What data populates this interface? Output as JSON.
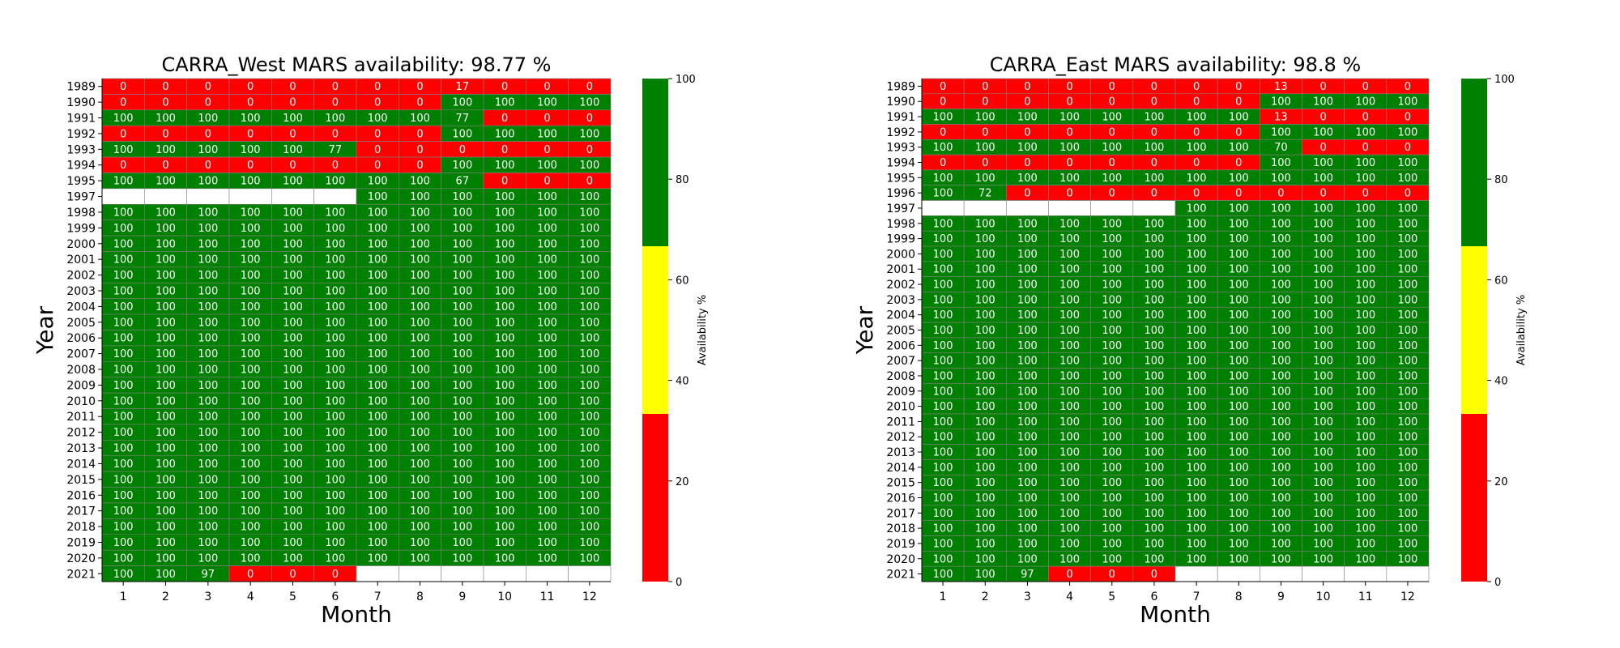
{
  "chart_data": [
    {
      "type": "heatmap",
      "title": "CARRA_West MARS availability: 98.77 %",
      "xlabel": "Month",
      "ylabel": "Year",
      "colorbar_label": "Availability %",
      "colorbar_ticks": [
        "0",
        "20",
        "40",
        "60",
        "80",
        "100"
      ],
      "x": [
        "1",
        "2",
        "3",
        "4",
        "5",
        "6",
        "7",
        "8",
        "9",
        "10",
        "11",
        "12"
      ],
      "y": [
        "1989",
        "1990",
        "1991",
        "1992",
        "1993",
        "1994",
        "1995",
        "1997",
        "1998",
        "1999",
        "2000",
        "2001",
        "2002",
        "2003",
        "2004",
        "2005",
        "2006",
        "2007",
        "2008",
        "2009",
        "2010",
        "2011",
        "2012",
        "2013",
        "2014",
        "2015",
        "2016",
        "2017",
        "2018",
        "2019",
        "2020",
        "2021"
      ],
      "values": [
        [
          0,
          0,
          0,
          0,
          0,
          0,
          0,
          0,
          17,
          0,
          0,
          0
        ],
        [
          0,
          0,
          0,
          0,
          0,
          0,
          0,
          0,
          100,
          100,
          100,
          100
        ],
        [
          100,
          100,
          100,
          100,
          100,
          100,
          100,
          100,
          77,
          0,
          0,
          0
        ],
        [
          0,
          0,
          0,
          0,
          0,
          0,
          0,
          0,
          100,
          100,
          100,
          100
        ],
        [
          100,
          100,
          100,
          100,
          100,
          77,
          0,
          0,
          0,
          0,
          0,
          0
        ],
        [
          0,
          0,
          0,
          0,
          0,
          0,
          0,
          0,
          100,
          100,
          100,
          100
        ],
        [
          100,
          100,
          100,
          100,
          100,
          100,
          100,
          100,
          67,
          0,
          0,
          0
        ],
        [
          null,
          null,
          null,
          null,
          null,
          null,
          100,
          100,
          100,
          100,
          100,
          100
        ],
        [
          100,
          100,
          100,
          100,
          100,
          100,
          100,
          100,
          100,
          100,
          100,
          100
        ],
        [
          100,
          100,
          100,
          100,
          100,
          100,
          100,
          100,
          100,
          100,
          100,
          100
        ],
        [
          100,
          100,
          100,
          100,
          100,
          100,
          100,
          100,
          100,
          100,
          100,
          100
        ],
        [
          100,
          100,
          100,
          100,
          100,
          100,
          100,
          100,
          100,
          100,
          100,
          100
        ],
        [
          100,
          100,
          100,
          100,
          100,
          100,
          100,
          100,
          100,
          100,
          100,
          100
        ],
        [
          100,
          100,
          100,
          100,
          100,
          100,
          100,
          100,
          100,
          100,
          100,
          100
        ],
        [
          100,
          100,
          100,
          100,
          100,
          100,
          100,
          100,
          100,
          100,
          100,
          100
        ],
        [
          100,
          100,
          100,
          100,
          100,
          100,
          100,
          100,
          100,
          100,
          100,
          100
        ],
        [
          100,
          100,
          100,
          100,
          100,
          100,
          100,
          100,
          100,
          100,
          100,
          100
        ],
        [
          100,
          100,
          100,
          100,
          100,
          100,
          100,
          100,
          100,
          100,
          100,
          100
        ],
        [
          100,
          100,
          100,
          100,
          100,
          100,
          100,
          100,
          100,
          100,
          100,
          100
        ],
        [
          100,
          100,
          100,
          100,
          100,
          100,
          100,
          100,
          100,
          100,
          100,
          100
        ],
        [
          100,
          100,
          100,
          100,
          100,
          100,
          100,
          100,
          100,
          100,
          100,
          100
        ],
        [
          100,
          100,
          100,
          100,
          100,
          100,
          100,
          100,
          100,
          100,
          100,
          100
        ],
        [
          100,
          100,
          100,
          100,
          100,
          100,
          100,
          100,
          100,
          100,
          100,
          100
        ],
        [
          100,
          100,
          100,
          100,
          100,
          100,
          100,
          100,
          100,
          100,
          100,
          100
        ],
        [
          100,
          100,
          100,
          100,
          100,
          100,
          100,
          100,
          100,
          100,
          100,
          100
        ],
        [
          100,
          100,
          100,
          100,
          100,
          100,
          100,
          100,
          100,
          100,
          100,
          100
        ],
        [
          100,
          100,
          100,
          100,
          100,
          100,
          100,
          100,
          100,
          100,
          100,
          100
        ],
        [
          100,
          100,
          100,
          100,
          100,
          100,
          100,
          100,
          100,
          100,
          100,
          100
        ],
        [
          100,
          100,
          100,
          100,
          100,
          100,
          100,
          100,
          100,
          100,
          100,
          100
        ],
        [
          100,
          100,
          100,
          100,
          100,
          100,
          100,
          100,
          100,
          100,
          100,
          100
        ],
        [
          100,
          100,
          100,
          100,
          100,
          100,
          100,
          100,
          100,
          100,
          100,
          100
        ],
        [
          100,
          100,
          97,
          0,
          0,
          0,
          null,
          null,
          null,
          null,
          null,
          null
        ]
      ]
    },
    {
      "type": "heatmap",
      "title": "CARRA_East MARS availability: 98.8 %",
      "xlabel": "Month",
      "ylabel": "Year",
      "colorbar_label": "Availability %",
      "colorbar_ticks": [
        "0",
        "20",
        "40",
        "60",
        "80",
        "100"
      ],
      "x": [
        "1",
        "2",
        "3",
        "4",
        "5",
        "6",
        "7",
        "8",
        "9",
        "10",
        "11",
        "12"
      ],
      "y": [
        "1989",
        "1990",
        "1991",
        "1992",
        "1993",
        "1994",
        "1995",
        "1996",
        "1997",
        "1998",
        "1999",
        "2000",
        "2001",
        "2002",
        "2003",
        "2004",
        "2005",
        "2006",
        "2007",
        "2008",
        "2009",
        "2010",
        "2011",
        "2012",
        "2013",
        "2014",
        "2015",
        "2016",
        "2017",
        "2018",
        "2019",
        "2020",
        "2021"
      ],
      "values": [
        [
          0,
          0,
          0,
          0,
          0,
          0,
          0,
          0,
          13,
          0,
          0,
          0
        ],
        [
          0,
          0,
          0,
          0,
          0,
          0,
          0,
          0,
          100,
          100,
          100,
          100
        ],
        [
          100,
          100,
          100,
          100,
          100,
          100,
          100,
          100,
          13,
          0,
          0,
          0
        ],
        [
          0,
          0,
          0,
          0,
          0,
          0,
          0,
          0,
          100,
          100,
          100,
          100
        ],
        [
          100,
          100,
          100,
          100,
          100,
          100,
          100,
          100,
          70,
          0,
          0,
          0
        ],
        [
          0,
          0,
          0,
          0,
          0,
          0,
          0,
          0,
          100,
          100,
          100,
          100
        ],
        [
          100,
          100,
          100,
          100,
          100,
          100,
          100,
          100,
          100,
          100,
          100,
          100
        ],
        [
          100,
          72,
          0,
          0,
          0,
          0,
          0,
          0,
          0,
          0,
          0,
          0
        ],
        [
          null,
          null,
          null,
          null,
          null,
          null,
          100,
          100,
          100,
          100,
          100,
          100
        ],
        [
          100,
          100,
          100,
          100,
          100,
          100,
          100,
          100,
          100,
          100,
          100,
          100
        ],
        [
          100,
          100,
          100,
          100,
          100,
          100,
          100,
          100,
          100,
          100,
          100,
          100
        ],
        [
          100,
          100,
          100,
          100,
          100,
          100,
          100,
          100,
          100,
          100,
          100,
          100
        ],
        [
          100,
          100,
          100,
          100,
          100,
          100,
          100,
          100,
          100,
          100,
          100,
          100
        ],
        [
          100,
          100,
          100,
          100,
          100,
          100,
          100,
          100,
          100,
          100,
          100,
          100
        ],
        [
          100,
          100,
          100,
          100,
          100,
          100,
          100,
          100,
          100,
          100,
          100,
          100
        ],
        [
          100,
          100,
          100,
          100,
          100,
          100,
          100,
          100,
          100,
          100,
          100,
          100
        ],
        [
          100,
          100,
          100,
          100,
          100,
          100,
          100,
          100,
          100,
          100,
          100,
          100
        ],
        [
          100,
          100,
          100,
          100,
          100,
          100,
          100,
          100,
          100,
          100,
          100,
          100
        ],
        [
          100,
          100,
          100,
          100,
          100,
          100,
          100,
          100,
          100,
          100,
          100,
          100
        ],
        [
          100,
          100,
          100,
          100,
          100,
          100,
          100,
          100,
          100,
          100,
          100,
          100
        ],
        [
          100,
          100,
          100,
          100,
          100,
          100,
          100,
          100,
          100,
          100,
          100,
          100
        ],
        [
          100,
          100,
          100,
          100,
          100,
          100,
          100,
          100,
          100,
          100,
          100,
          100
        ],
        [
          100,
          100,
          100,
          100,
          100,
          100,
          100,
          100,
          100,
          100,
          100,
          100
        ],
        [
          100,
          100,
          100,
          100,
          100,
          100,
          100,
          100,
          100,
          100,
          100,
          100
        ],
        [
          100,
          100,
          100,
          100,
          100,
          100,
          100,
          100,
          100,
          100,
          100,
          100
        ],
        [
          100,
          100,
          100,
          100,
          100,
          100,
          100,
          100,
          100,
          100,
          100,
          100
        ],
        [
          100,
          100,
          100,
          100,
          100,
          100,
          100,
          100,
          100,
          100,
          100,
          100
        ],
        [
          100,
          100,
          100,
          100,
          100,
          100,
          100,
          100,
          100,
          100,
          100,
          100
        ],
        [
          100,
          100,
          100,
          100,
          100,
          100,
          100,
          100,
          100,
          100,
          100,
          100
        ],
        [
          100,
          100,
          100,
          100,
          100,
          100,
          100,
          100,
          100,
          100,
          100,
          100
        ],
        [
          100,
          100,
          100,
          100,
          100,
          100,
          100,
          100,
          100,
          100,
          100,
          100
        ],
        [
          100,
          100,
          100,
          100,
          100,
          100,
          100,
          100,
          100,
          100,
          100,
          100
        ],
        [
          100,
          100,
          97,
          0,
          0,
          0,
          null,
          null,
          null,
          null,
          null,
          null
        ]
      ]
    }
  ],
  "colors": {
    "low": "#ff0000",
    "mid": "#ffff00",
    "high": "#008000",
    "cell_border": "#808080",
    "cell_text": "#ffffff",
    "missing": "#ffffff"
  }
}
